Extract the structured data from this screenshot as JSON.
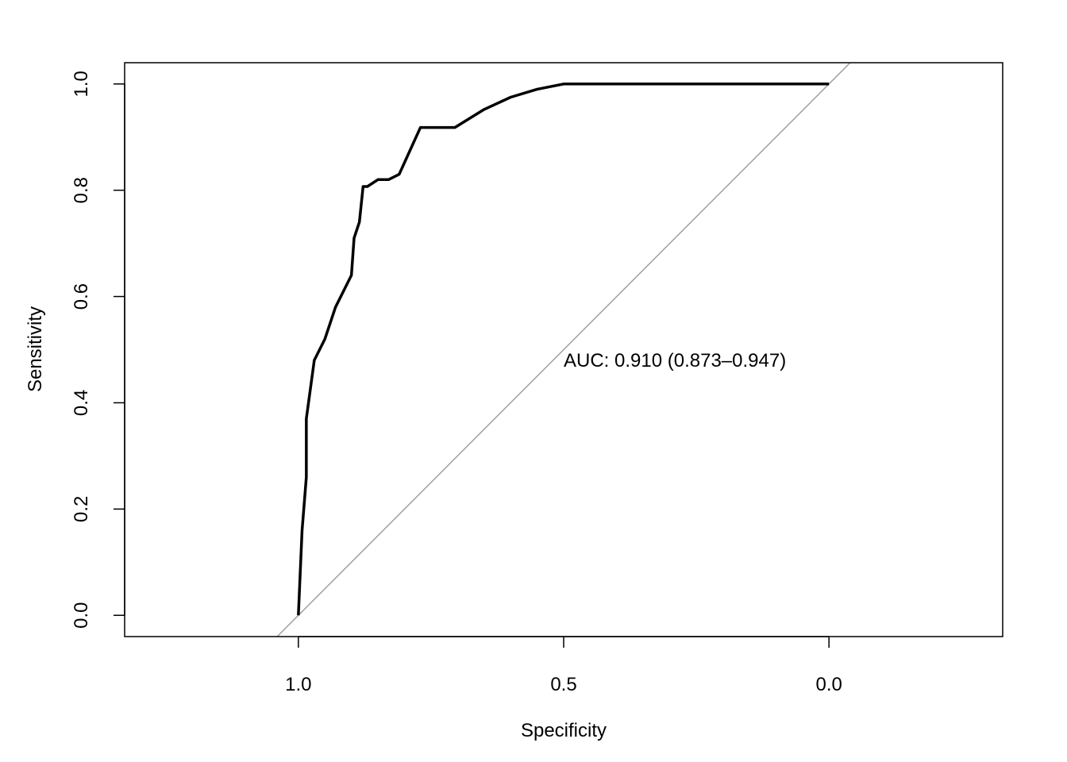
{
  "chart_data": {
    "type": "line",
    "title": "",
    "xlabel": "Specificity",
    "ylabel": "Sensitivity",
    "x_reversed": true,
    "xlim": [
      1.3274,
      -0.3274
    ],
    "ylim": [
      -0.04,
      1.04
    ],
    "x_ticks": [
      1.0,
      0.5,
      0.0
    ],
    "x_tick_labels": [
      "1.0",
      "0.5",
      "0.0"
    ],
    "y_ticks": [
      0.0,
      0.2,
      0.4,
      0.6,
      0.8,
      1.0
    ],
    "y_tick_labels": [
      "0.0",
      "0.2",
      "0.4",
      "0.6",
      "0.8",
      "1.0"
    ],
    "grid": false,
    "series": [
      {
        "values_note": "",
        "x": [
          1.0,
          0.993,
          0.985,
          0.985,
          0.97,
          0.95,
          0.93,
          0.9,
          0.895,
          0.885,
          0.878,
          0.87,
          0.85,
          0.83,
          0.81,
          0.77,
          0.705,
          0.65,
          0.6,
          0.55,
          0.5,
          0.4,
          0.3,
          0.2,
          0.1,
          0.0
        ],
        "y": [
          0.0,
          0.16,
          0.26,
          0.37,
          0.48,
          0.52,
          0.58,
          0.64,
          0.71,
          0.74,
          0.807,
          0.807,
          0.82,
          0.82,
          0.83,
          0.918,
          0.918,
          0.952,
          0.975,
          0.99,
          1.0,
          1.0,
          1.0,
          1.0,
          1.0,
          1.0
        ],
        "color": "#000000"
      }
    ],
    "reference_line": {
      "slope": -1,
      "intercept": 1,
      "color": "#a0a0a0"
    },
    "annotation": {
      "text": "AUC: 0.910 (0.873–0.947)",
      "x": 0.5,
      "y": 0.48
    }
  }
}
